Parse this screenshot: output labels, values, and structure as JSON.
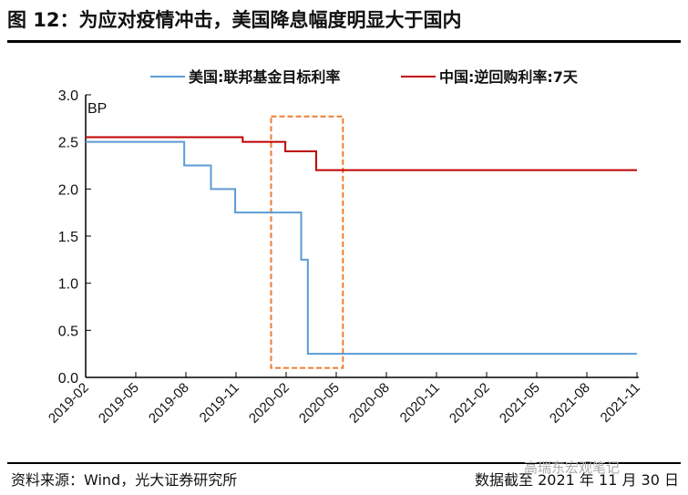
{
  "title": "图 12：为应对疫情冲击，美国降息幅度明显大于国内",
  "source": "资料来源：Wind，光大证券研究所",
  "cutoff": "数据截至 2021 年 11 月 30 日",
  "watermark": "高瑞东宏观笔记",
  "chart_data": {
    "type": "line",
    "title": "图 12：为应对疫情冲击，美国降息幅度明显大于国内",
    "ylabel": "BP",
    "xlabel": "",
    "x_unit": "months since 2019-02",
    "xlim": [
      0,
      33
    ],
    "ylim": [
      0,
      3.0
    ],
    "yticks": [
      "0.0",
      "0.5",
      "1.0",
      "1.5",
      "2.0",
      "2.5",
      "3.0"
    ],
    "xticks": [
      "2019-02",
      "2019-05",
      "2019-08",
      "2019-11",
      "2020-02",
      "2020-05",
      "2020-08",
      "2020-11",
      "2021-02",
      "2021-05",
      "2021-08",
      "2021-11"
    ],
    "legend_position": "top",
    "grid": false,
    "series": [
      {
        "name": "美国:联邦基金目标利率",
        "color": "#5b9bd5",
        "step_points": [
          [
            0,
            2.5
          ],
          [
            5.9,
            2.5
          ],
          [
            5.9,
            2.25
          ],
          [
            7.5,
            2.25
          ],
          [
            7.5,
            2.0
          ],
          [
            8.95,
            2.0
          ],
          [
            8.95,
            1.75
          ],
          [
            12.9,
            1.75
          ],
          [
            12.9,
            1.25
          ],
          [
            13.3,
            1.25
          ],
          [
            13.3,
            0.25
          ],
          [
            33,
            0.25
          ]
        ]
      },
      {
        "name": "中国:逆回购利率:7天",
        "color": "#c00000",
        "step_points": [
          [
            0,
            2.55
          ],
          [
            9.4,
            2.55
          ],
          [
            9.4,
            2.5
          ],
          [
            11.95,
            2.5
          ],
          [
            11.95,
            2.4
          ],
          [
            13.8,
            2.4
          ],
          [
            13.8,
            2.2
          ],
          [
            33,
            2.2
          ]
        ]
      }
    ],
    "annotation": {
      "type": "dashed-rectangle",
      "color": "#ed7d31",
      "x_range": [
        11.1,
        15.4
      ],
      "y_range": [
        0.1,
        2.77
      ]
    }
  }
}
